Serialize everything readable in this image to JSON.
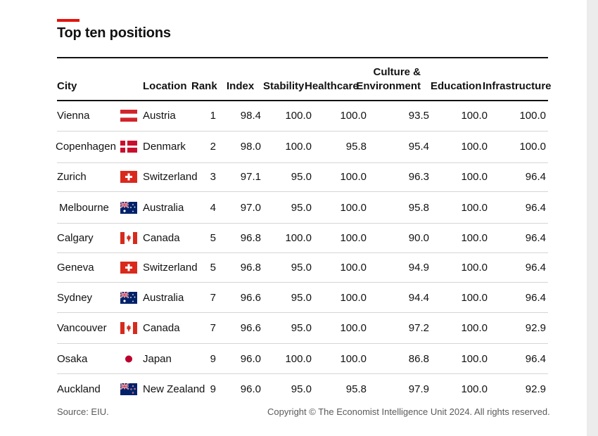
{
  "title": "Top ten positions",
  "columns": [
    "City",
    "Location",
    "Rank",
    "Index",
    "Stability",
    "Healthcare",
    "Culture & Environment",
    "Education",
    "Infrastructure"
  ],
  "column_lines": {
    "culture_line1": "Culture &",
    "culture_line2": "Environment"
  },
  "colors": {
    "accent": "#e3120b",
    "text": "#121212",
    "rule": "#d5d5d5",
    "footer": "#5a5a5a"
  },
  "chart_data": {
    "type": "table",
    "title": "Top ten positions",
    "columns": [
      "City",
      "Location",
      "Rank",
      "Index",
      "Stability",
      "Healthcare",
      "Culture & Environment",
      "Education",
      "Infrastructure"
    ],
    "rows": [
      {
        "city": "Vienna",
        "flag": "austria-flag-icon",
        "location": "Austria",
        "rank": "1",
        "index": "98.4",
        "stability": "100.0",
        "healthcare": "100.0",
        "culture": "93.5",
        "education": "100.0",
        "infrastructure": "100.0"
      },
      {
        "city": "Copenhagen",
        "flag": "denmark-flag-icon",
        "location": "Denmark",
        "rank": "2",
        "index": "98.0",
        "stability": "100.0",
        "healthcare": "95.8",
        "culture": "95.4",
        "education": "100.0",
        "infrastructure": "100.0"
      },
      {
        "city": "Zurich",
        "flag": "switzerland-flag-icon",
        "location": "Switzerland",
        "rank": "3",
        "index": "97.1",
        "stability": "95.0",
        "healthcare": "100.0",
        "culture": "96.3",
        "education": "100.0",
        "infrastructure": "96.4"
      },
      {
        "city": "Melbourne",
        "flag": "australia-flag-icon",
        "location": "Australia",
        "rank": "4",
        "index": "97.0",
        "stability": "95.0",
        "healthcare": "100.0",
        "culture": "95.8",
        "education": "100.0",
        "infrastructure": "96.4"
      },
      {
        "city": "Calgary",
        "flag": "canada-flag-icon",
        "location": "Canada",
        "rank": "5",
        "index": "96.8",
        "stability": "100.0",
        "healthcare": "100.0",
        "culture": "90.0",
        "education": "100.0",
        "infrastructure": "96.4"
      },
      {
        "city": "Geneva",
        "flag": "switzerland-flag-icon",
        "location": "Switzerland",
        "rank": "5",
        "index": "96.8",
        "stability": "95.0",
        "healthcare": "100.0",
        "culture": "94.9",
        "education": "100.0",
        "infrastructure": "96.4"
      },
      {
        "city": "Sydney",
        "flag": "australia-flag-icon",
        "location": "Australia",
        "rank": "7",
        "index": "96.6",
        "stability": "95.0",
        "healthcare": "100.0",
        "culture": "94.4",
        "education": "100.0",
        "infrastructure": "96.4"
      },
      {
        "city": "Vancouver",
        "flag": "canada-flag-icon",
        "location": "Canada",
        "rank": "7",
        "index": "96.6",
        "stability": "95.0",
        "healthcare": "100.0",
        "culture": "97.2",
        "education": "100.0",
        "infrastructure": "92.9"
      },
      {
        "city": "Osaka",
        "flag": "japan-flag-icon",
        "location": "Japan",
        "rank": "9",
        "index": "96.0",
        "stability": "100.0",
        "healthcare": "100.0",
        "culture": "86.8",
        "education": "100.0",
        "infrastructure": "96.4"
      },
      {
        "city": "Auckland",
        "flag": "new-zealand-flag-icon",
        "location": "New Zealand",
        "rank": "9",
        "index": "96.0",
        "stability": "95.0",
        "healthcare": "95.8",
        "culture": "97.9",
        "education": "100.0",
        "infrastructure": "92.9"
      }
    ]
  },
  "footer": {
    "source": "Source: EIU.",
    "copyright": "Copyright © The Economist Intelligence Unit 2024. All rights reserved."
  }
}
